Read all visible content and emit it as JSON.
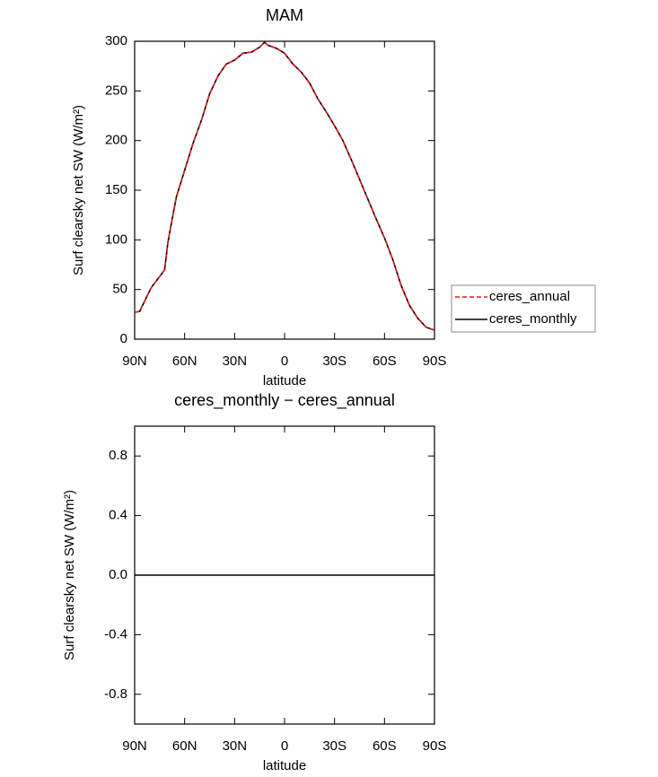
{
  "chart_data": [
    {
      "type": "line",
      "title": "MAM",
      "xlabel": "latitude",
      "ylabel": "Surf clearsky net SW (W/m²)",
      "x": [
        90,
        87,
        80,
        75,
        72,
        70,
        65,
        60,
        55,
        50,
        45,
        40,
        35,
        30,
        25,
        20,
        15,
        12,
        10,
        5,
        0,
        -5,
        -10,
        -15,
        -20,
        -25,
        -30,
        -35,
        -40,
        -45,
        -50,
        -55,
        -60,
        -65,
        -70,
        -75,
        -80,
        -85,
        -90
      ],
      "series": [
        {
          "name": "ceres_annual",
          "color": "#e31a1c",
          "dashed": true,
          "values": [
            27,
            28,
            52,
            63,
            70,
            98,
            143,
            170,
            197,
            220,
            247,
            265,
            277,
            281,
            288,
            289,
            294,
            299,
            296,
            293,
            288,
            277,
            269,
            258,
            242,
            229,
            215,
            200,
            181,
            161,
            141,
            121,
            102,
            80,
            54,
            34,
            21,
            12,
            9
          ]
        },
        {
          "name": "ceres_monthly",
          "color": "#000000",
          "dashed": false,
          "values": [
            27,
            28,
            52,
            63,
            70,
            98,
            143,
            170,
            197,
            220,
            247,
            265,
            277,
            281,
            288,
            289,
            294,
            299,
            296,
            293,
            288,
            277,
            269,
            258,
            242,
            229,
            215,
            200,
            181,
            161,
            141,
            121,
            102,
            80,
            54,
            34,
            21,
            12,
            9
          ]
        }
      ],
      "xlim": [
        90,
        -90
      ],
      "xticks": [
        {
          "value": 90,
          "label": "90N"
        },
        {
          "value": 60,
          "label": "60N"
        },
        {
          "value": 30,
          "label": "30N"
        },
        0,
        {
          "value": -30,
          "label": "30S"
        },
        {
          "value": -60,
          "label": "60S"
        },
        {
          "value": -90,
          "label": "90S"
        }
      ],
      "ylim": [
        0,
        300
      ],
      "yticks": [
        0,
        50,
        100,
        150,
        200,
        250,
        300
      ],
      "legend": "right"
    },
    {
      "type": "line",
      "title": "ceres_monthly − ceres_annual",
      "xlabel": "latitude",
      "ylabel": "Surf clearsky net SW (W/m²)",
      "x": [
        90,
        60,
        30,
        0,
        -30,
        -60,
        -90
      ],
      "series": [
        {
          "color": "#000000",
          "dashed": false,
          "values": [
            0,
            0,
            0,
            0,
            0,
            0,
            0
          ]
        }
      ],
      "xlim": [
        90,
        -90
      ],
      "xticks": [
        {
          "value": 90,
          "label": "90N"
        },
        {
          "value": 60,
          "label": "60N"
        },
        {
          "value": 30,
          "label": "30N"
        },
        0,
        {
          "value": -30,
          "label": "30S"
        },
        {
          "value": -60,
          "label": "60S"
        },
        {
          "value": -90,
          "label": "90S"
        }
      ],
      "ylim": [
        -1,
        1
      ],
      "yticks": [
        -0.8,
        -0.4,
        {
          "value": 0,
          "label": "0.0"
        },
        0.4,
        0.8
      ]
    }
  ]
}
